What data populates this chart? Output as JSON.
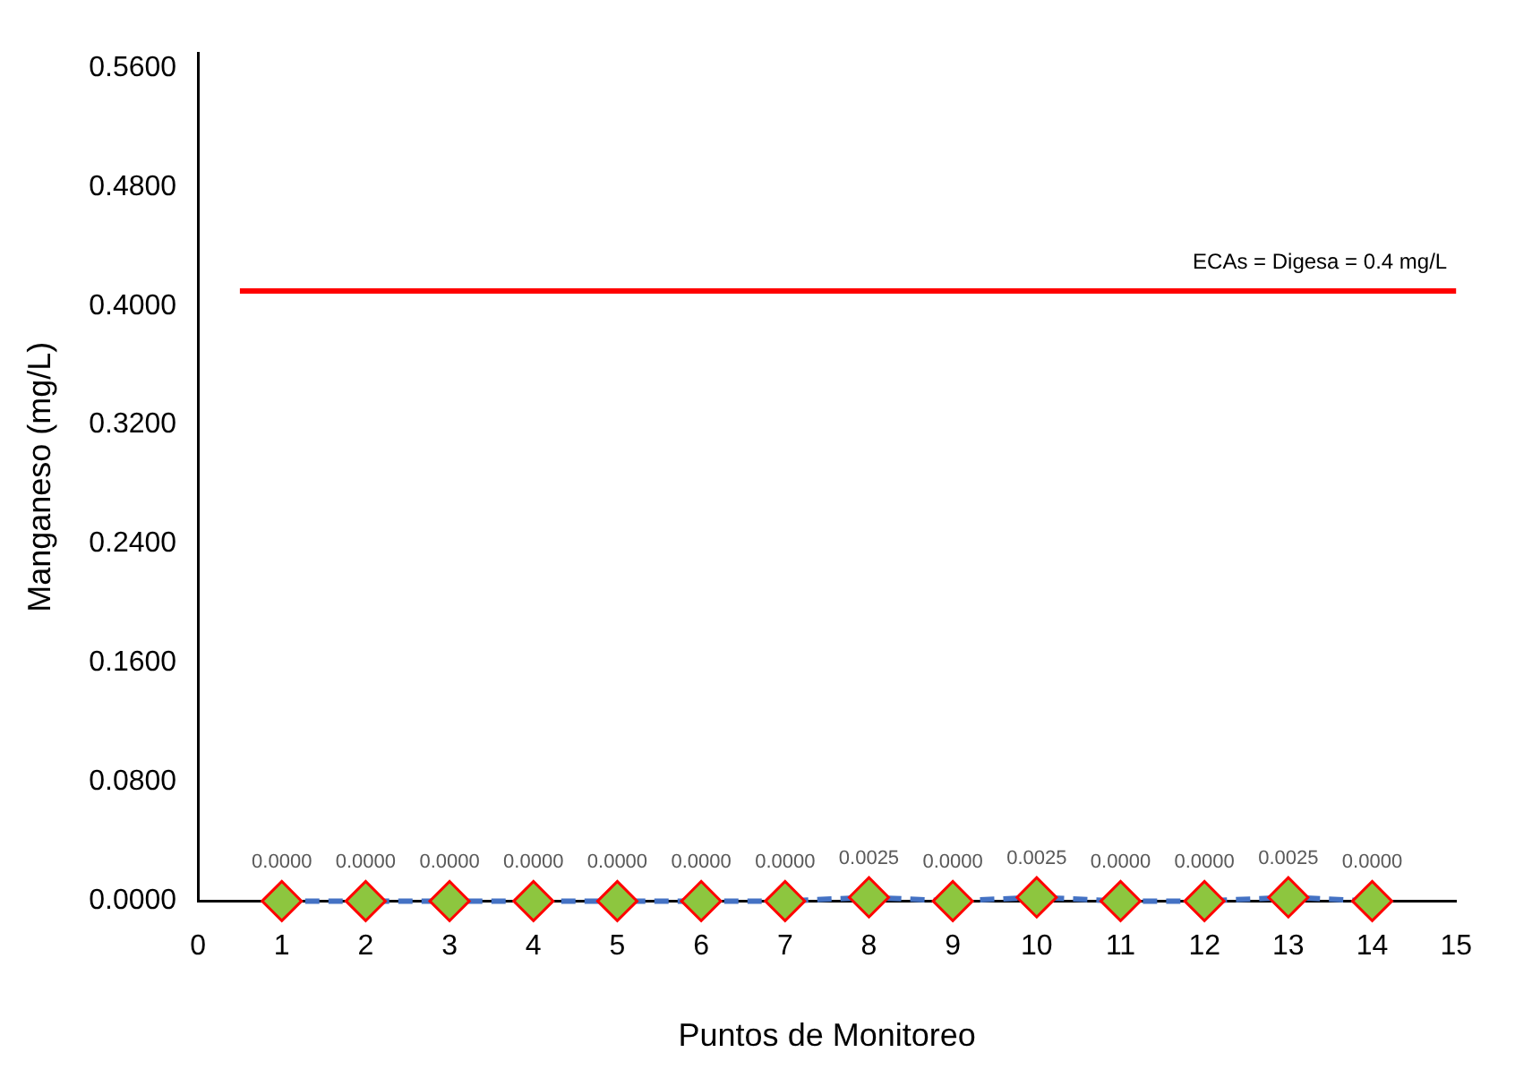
{
  "chart_data": {
    "type": "line",
    "xlabel": "Puntos de Monitoreo",
    "ylabel": "Manganeso (mg/L)",
    "x": [
      1,
      2,
      3,
      4,
      5,
      6,
      7,
      8,
      9,
      10,
      11,
      12,
      13,
      14
    ],
    "series": [
      {
        "color": "#4472c4",
        "colors": [
          "#8dc63f",
          "#8dc63f",
          "#8dc63f",
          "#8dc63f",
          "#8dc63f",
          "#8dc63f",
          "#8dc63f",
          "#8dc63f",
          "#8dc63f",
          "#8dc63f",
          "#8dc63f",
          "#8dc63f",
          "#8dc63f",
          "#8dc63f"
        ],
        "line_style": "dashed",
        "values": [
          0,
          0,
          0,
          0,
          0,
          0,
          0,
          0.0025,
          0,
          0.0025,
          0,
          0,
          0.0025,
          0
        ],
        "value_labels": [
          "0.0000",
          "0.0000",
          "0.0000",
          "0.0000",
          "0.0000",
          "0.0000",
          "0.0000",
          "0.0025",
          "0.0000",
          "0.0025",
          "0.0000",
          "0.0000",
          "0.0025",
          "0.0000"
        ]
      }
    ],
    "marker": "diamond",
    "grid": false,
    "legend": false,
    "xlim": [
      0,
      15
    ],
    "xticks": [
      0,
      1,
      2,
      3,
      4,
      5,
      6,
      7,
      8,
      9,
      10,
      11,
      12,
      13,
      14,
      15
    ],
    "ylim": [
      0,
      0.57
    ],
    "yticks": [
      {
        "value": 0,
        "label": "0.0000"
      },
      {
        "value": 0.08,
        "label": "0.0800"
      },
      {
        "value": 0.16,
        "label": "0.1600"
      },
      {
        "value": 0.24,
        "label": "0.2400"
      },
      {
        "value": 0.32,
        "label": "0.3200"
      },
      {
        "value": 0.4,
        "label": "0.4000"
      },
      {
        "value": 0.48,
        "label": "0.4800"
      },
      {
        "value": 0.56,
        "label": "0.5600"
      }
    ],
    "ref_lines": [
      {
        "axis": "y",
        "value": 0.41,
        "label": "ECAs = Digesa = 0.4 mg/L",
        "color": "#ff0000"
      }
    ]
  }
}
